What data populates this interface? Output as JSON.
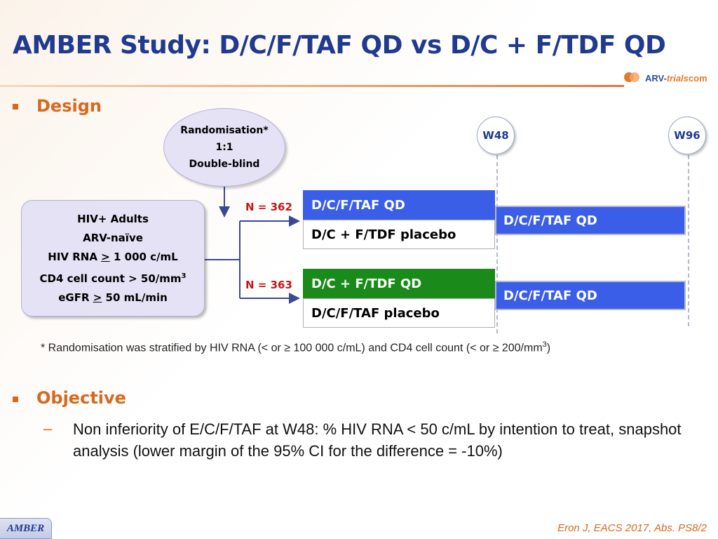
{
  "header": {
    "title": "AMBER Study: D/C/F/TAF QD vs D/C + F/TDF QD",
    "logo": {
      "part1": "ARV-",
      "part2": "trials",
      "part3": "com"
    }
  },
  "design": {
    "heading": "Design",
    "randomisation": [
      "Randomisation*",
      "1:1",
      "Double-blind"
    ],
    "population": {
      "line1": "HIV+ Adults",
      "line2": "ARV-naïve",
      "line3_pre": "HIV RNA ",
      "line3_op": ">",
      "line3_post": " 1 000 c/mL",
      "line4": "CD4 cell count > 50/mm",
      "line4_sup": "3",
      "line5_pre": "eGFR ",
      "line5_op": ">",
      "line5_post": " 50 mL/min"
    },
    "weeks": [
      "W48",
      "W96"
    ],
    "arms": [
      {
        "n": "N = 362",
        "active": "D/C/F/TAF QD",
        "placebo": "D/C + F/TDF placebo",
        "extension": "D/C/F/TAF QD",
        "active_color": "#3b5ee8"
      },
      {
        "n": "N = 363",
        "active": "D/C + F/TDF QD",
        "placebo": "D/C/F/TAF placebo",
        "extension": "D/C/F/TAF QD",
        "active_color": "#1a8a1a"
      }
    ],
    "footnote": "* Randomisation was stratified by HIV RNA (< or ≥ 100 000 c/mL) and CD4 cell count (< or ≥ 200/mm",
    "footnote_sup": "3",
    "footnote_end": ")"
  },
  "objective": {
    "heading": "Objective",
    "dash": "–",
    "text": "Non inferiority of E/C/F/TAF at W48: % HIV RNA < 50 c/mL by intention to treat, snapshot analysis (lower margin of the 95% CI for the difference = -10%)"
  },
  "footer": {
    "tab": "AMBER",
    "reference": "Eron J, EACS 2017, Abs. PS8/2"
  }
}
